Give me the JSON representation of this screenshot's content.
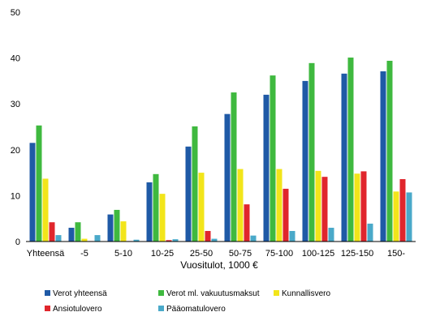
{
  "chart_data": {
    "type": "bar",
    "title": "",
    "xlabel": "Vuositulot, 1000 €",
    "ylabel": "",
    "ylim": [
      0,
      50
    ],
    "yticks": [
      0,
      10,
      20,
      30,
      40,
      50
    ],
    "grid": false,
    "legend_position": "bottom",
    "categories": [
      "Yhteensä",
      "-5",
      "5-10",
      "10-25",
      "25-50",
      "50-75",
      "75-100",
      "100-125",
      "125-150",
      "150-"
    ],
    "series": [
      {
        "name": "Verot yhteensä",
        "color": "#1f5aa6",
        "values": [
          21.5,
          3.0,
          5.9,
          12.9,
          20.7,
          27.8,
          32.0,
          35.0,
          36.6,
          37.1
        ]
      },
      {
        "name": "Verot ml. vakuutusmaksut",
        "color": "#3fb93f",
        "values": [
          25.3,
          4.2,
          6.9,
          14.7,
          25.1,
          32.5,
          36.2,
          38.9,
          40.1,
          39.4
        ]
      },
      {
        "name": "Kunnallisvero",
        "color": "#f2e51a",
        "values": [
          13.7,
          0.6,
          4.4,
          10.4,
          15.0,
          15.8,
          15.8,
          15.4,
          14.8,
          10.9
        ]
      },
      {
        "name": "Ansiotulovero",
        "color": "#e0262c",
        "values": [
          4.2,
          0.1,
          0.1,
          0.3,
          2.3,
          8.1,
          11.5,
          14.1,
          15.3,
          13.6
        ]
      },
      {
        "name": "Pääomatulovero",
        "color": "#4aa9c9",
        "values": [
          1.4,
          1.4,
          0.4,
          0.5,
          0.6,
          1.3,
          2.3,
          3.0,
          3.9,
          10.7
        ]
      }
    ]
  }
}
